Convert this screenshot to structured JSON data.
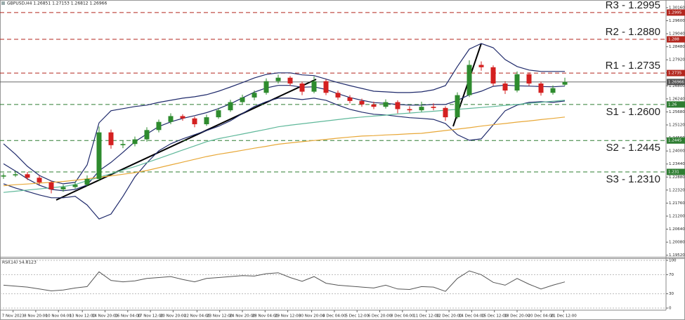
{
  "chart_data": [
    {
      "type": "candlestick",
      "title": "GBPUSD,H4  1.26851 1.27153 1.26812 1.26966",
      "bull_color": "#2e8b2e",
      "bear_color": "#d42020",
      "open": [
        1.229,
        1.2295,
        1.23,
        1.2285,
        1.2265,
        1.2235,
        1.2245,
        1.2255,
        1.228,
        1.248,
        1.2425,
        1.243,
        1.245,
        1.249,
        1.2525,
        1.255,
        1.254,
        1.2515,
        1.2545,
        1.2575,
        1.261,
        1.263,
        1.265,
        1.27,
        1.2715,
        1.269,
        1.2655,
        1.27,
        1.265,
        1.263,
        1.2615,
        1.26,
        1.259,
        1.261,
        1.258,
        1.2575,
        1.259,
        1.2585,
        1.2545,
        1.264,
        1.277,
        1.276,
        1.269,
        1.266,
        1.273,
        1.269,
        1.265,
        1.2685
      ],
      "high": [
        1.2305,
        1.2312,
        1.231,
        1.2295,
        1.2272,
        1.2255,
        1.2268,
        1.2295,
        1.2505,
        1.2492,
        1.2445,
        1.2462,
        1.2502,
        1.2535,
        1.2562,
        1.2558,
        1.2548,
        1.2556,
        1.2585,
        1.262,
        1.2642,
        1.266,
        1.2712,
        1.2728,
        1.2722,
        1.2698,
        1.2721,
        1.2708,
        1.266,
        1.264,
        1.2625,
        1.2612,
        1.2622,
        1.2618,
        1.2592,
        1.2612,
        1.2605,
        1.2592,
        1.2652,
        1.279,
        1.2785,
        1.2768,
        1.27,
        1.2742,
        1.2738,
        1.2698,
        1.2682,
        1.2715
      ],
      "low": [
        1.228,
        1.2288,
        1.2275,
        1.2255,
        1.2218,
        1.2225,
        1.2238,
        1.2248,
        1.227,
        1.241,
        1.2412,
        1.242,
        1.244,
        1.248,
        1.2515,
        1.253,
        1.2502,
        1.2508,
        1.2538,
        1.2568,
        1.26,
        1.2618,
        1.2642,
        1.269,
        1.268,
        1.264,
        1.2648,
        1.264,
        1.262,
        1.2605,
        1.259,
        1.258,
        1.2582,
        1.2562,
        1.2565,
        1.2568,
        1.2575,
        1.253,
        1.2538,
        1.2632,
        1.2745,
        1.268,
        1.2645,
        1.2652,
        1.268,
        1.2638,
        1.2642,
        1.2681
      ],
      "close": [
        1.2295,
        1.23,
        1.2285,
        1.2265,
        1.2235,
        1.2245,
        1.2255,
        1.228,
        1.248,
        1.2425,
        1.243,
        1.245,
        1.249,
        1.2525,
        1.255,
        1.254,
        1.2515,
        1.2545,
        1.2575,
        1.261,
        1.263,
        1.265,
        1.27,
        1.2715,
        1.269,
        1.2655,
        1.27,
        1.265,
        1.263,
        1.2615,
        1.26,
        1.259,
        1.261,
        1.258,
        1.2575,
        1.259,
        1.2585,
        1.2545,
        1.264,
        1.277,
        1.276,
        1.269,
        1.266,
        1.273,
        1.269,
        1.265,
        1.267,
        1.2697
      ],
      "series": [
        {
          "color": "#1f2a6b",
          "values": [
            1.2431,
            1.2386,
            1.2334,
            1.2295,
            1.2271,
            1.2259,
            1.2265,
            1.234,
            1.2521,
            1.2573,
            1.2582,
            1.2591,
            1.2597,
            1.2609,
            1.2618,
            1.2627,
            1.2633,
            1.2642,
            1.2657,
            1.2675,
            1.2694,
            1.2714,
            1.2729,
            1.2736,
            1.2736,
            1.2727,
            1.2724,
            1.2709,
            1.2694,
            1.2681,
            1.2669,
            1.2657,
            1.2654,
            1.2651,
            1.2651,
            1.2654,
            1.2663,
            1.2681,
            1.2763,
            1.2838,
            1.2862,
            1.2844,
            1.2793,
            1.2763,
            1.2748,
            1.2742,
            1.2742,
            1.2742
          ]
        },
        {
          "color": "#1f2a6b",
          "values": [
            1.2345,
            1.2314,
            1.228,
            1.2253,
            1.2235,
            1.2229,
            1.2235,
            1.2254,
            1.2315,
            1.2351,
            1.2394,
            1.244,
            1.2473,
            1.2505,
            1.2525,
            1.254,
            1.2552,
            1.2565,
            1.2582,
            1.2603,
            1.2628,
            1.2653,
            1.2671,
            1.2682,
            1.2682,
            1.2674,
            1.2676,
            1.2664,
            1.2646,
            1.263,
            1.2618,
            1.2608,
            1.2605,
            1.26,
            1.2597,
            1.2597,
            1.26,
            1.26,
            1.2617,
            1.2642,
            1.2657,
            1.2678,
            1.2683,
            1.268,
            1.2679,
            1.2677,
            1.2676,
            1.2679
          ]
        },
        {
          "color": "#1f2a6b",
          "values": [
            1.2259,
            1.2241,
            1.2226,
            1.2211,
            1.2199,
            1.2199,
            1.2205,
            1.2168,
            1.2108,
            1.2129,
            1.2205,
            1.2289,
            1.2349,
            1.2401,
            1.2431,
            1.2452,
            1.247,
            1.2488,
            1.2506,
            1.253,
            1.2561,
            1.2591,
            1.2612,
            1.2627,
            1.2627,
            1.2621,
            1.2627,
            1.2618,
            1.2597,
            1.2579,
            1.2567,
            1.2558,
            1.2555,
            1.2549,
            1.2543,
            1.254,
            1.2536,
            1.2518,
            1.247,
            1.2446,
            1.2452,
            1.2512,
            1.2573,
            1.2597,
            1.2609,
            1.2612,
            1.2609,
            1.2615
          ]
        },
        {
          "color": "#5fb89a",
          "values": [
            1.2222,
            1.2227,
            1.2232,
            1.2237,
            1.2242,
            1.2247,
            1.2256,
            1.2272,
            1.2287,
            1.2302,
            1.2318,
            1.2333,
            1.235,
            1.2368,
            1.2386,
            1.2404,
            1.2422,
            1.244,
            1.2453,
            1.2463,
            1.2473,
            1.2483,
            1.2493,
            1.2504,
            1.2511,
            1.2517,
            1.2523,
            1.2529,
            1.2535,
            1.2541,
            1.2546,
            1.255,
            1.2554,
            1.2559,
            1.2563,
            1.2567,
            1.2571,
            1.2575,
            1.2579,
            1.2583,
            1.2587,
            1.2591,
            1.2596,
            1.26,
            1.2605,
            1.2609,
            1.2614,
            1.2618
          ]
        },
        {
          "color": "#e8a838",
          "values": [
            1.2251,
            1.2255,
            1.2258,
            1.2262,
            1.2265,
            1.2269,
            1.2274,
            1.228,
            1.2287,
            1.2293,
            1.23,
            1.2307,
            1.2316,
            1.2328,
            1.234,
            1.2352,
            1.2364,
            1.2376,
            1.2386,
            1.2394,
            1.2403,
            1.2412,
            1.242,
            1.2429,
            1.2435,
            1.244,
            1.2445,
            1.245,
            1.2455,
            1.246,
            1.2464,
            1.2466,
            1.2469,
            1.2471,
            1.2474,
            1.2476,
            1.2482,
            1.2488,
            1.2494,
            1.25,
            1.2507,
            1.2513,
            1.2518,
            1.2524,
            1.2529,
            1.2535,
            1.254,
            1.2546
          ]
        }
      ],
      "levels": [
        {
          "label": "R3 - 1.2995",
          "value": 1.2995,
          "color": "#b3261e"
        },
        {
          "label": "R2 - 1.2880",
          "value": 1.288,
          "color": "#b3261e"
        },
        {
          "label": "R1 - 1.2735",
          "value": 1.2735,
          "color": "#b3261e"
        },
        {
          "label": "S1 - 1.2600",
          "value": 1.26,
          "color": "#2e7d32"
        },
        {
          "label": "S2 - 1.2445",
          "value": 1.2445,
          "color": "#2e7d32"
        },
        {
          "label": "S3 - 1.2310",
          "value": 1.231,
          "color": "#2e7d32"
        }
      ],
      "last": {
        "value": 1.26966,
        "color": "#555555"
      },
      "xlim": [
        -0.294,
        55.47
      ],
      "ylim": [
        1.1948,
        1.3049
      ],
      "yticks": [
        {
          "value": 1.3016,
          "label": "1.30160"
        },
        {
          "value": 1.296,
          "label": "1.29600"
        },
        {
          "value": 1.2904,
          "label": "1.29040"
        },
        {
          "value": 1.2848,
          "label": "1.28480"
        },
        {
          "value": 1.2792,
          "label": "1.27920"
        },
        {
          "value": 1.2736,
          "label": "1.27360"
        },
        {
          "value": 1.268,
          "label": "1.26800"
        },
        {
          "value": 1.2624,
          "label": "1.26240"
        },
        {
          "value": 1.2568,
          "label": "1.25680"
        },
        {
          "value": 1.2512,
          "label": "1.25120"
        },
        {
          "value": 1.2456,
          "label": "1.24560"
        },
        {
          "value": 1.24,
          "label": "1.24000"
        },
        {
          "value": 1.2344,
          "label": "1.23440"
        },
        {
          "value": 1.2288,
          "label": "1.22880"
        },
        {
          "value": 1.2232,
          "label": "1.22320"
        },
        {
          "value": 1.2176,
          "label": "1.21760"
        },
        {
          "value": 1.212,
          "label": "1.21200"
        },
        {
          "value": 1.2064,
          "label": "1.20640"
        },
        {
          "value": 1.2008,
          "label": "1.20080"
        },
        {
          "value": 1.1952,
          "label": "1.19520"
        }
      ],
      "xticks": [
        {
          "value": 0.8,
          "label": "7 Nov 2023"
        },
        {
          "value": 2.7,
          "label": "8 Nov 20:00"
        },
        {
          "value": 4.6,
          "label": "10 Nov 04:00"
        },
        {
          "value": 6.6,
          "label": "13 Nov 12:00"
        },
        {
          "value": 8.5,
          "label": "14 Nov 20:00"
        },
        {
          "value": 10.4,
          "label": "16 Nov 04:00"
        },
        {
          "value": 12.3,
          "label": "17 Nov 12:00"
        },
        {
          "value": 14.2,
          "label": "20 Nov 20:00"
        },
        {
          "value": 16.2,
          "label": "22 Nov 04:00"
        },
        {
          "value": 18.1,
          "label": "23 Nov 12:00"
        },
        {
          "value": 20.0,
          "label": "24 Nov 20:00"
        },
        {
          "value": 21.9,
          "label": "28 Nov 04:00"
        },
        {
          "value": 23.8,
          "label": "29 Nov 12:00"
        },
        {
          "value": 25.8,
          "label": "30 Nov 20:00"
        },
        {
          "value": 27.7,
          "label": "4 Dec 04:00"
        },
        {
          "value": 29.6,
          "label": "5 Dec 12:00"
        },
        {
          "value": 31.5,
          "label": "6 Dec 20:00"
        },
        {
          "value": 33.4,
          "label": "8 Dec 04:00"
        },
        {
          "value": 35.4,
          "label": "11 Dec 12:00"
        },
        {
          "value": 37.3,
          "label": "12 Dec 20:00"
        },
        {
          "value": 39.2,
          "label": "14 Dec 04:00"
        },
        {
          "value": 41.1,
          "label": "15 Dec 12:00"
        },
        {
          "value": 43.0,
          "label": "18 Dec 20:00"
        },
        {
          "value": 45.0,
          "label": "20 Dec 04:00"
        },
        {
          "value": 46.9,
          "label": "21 Dec 12:00"
        }
      ]
    },
    {
      "type": "line",
      "title": "RSI(14) 54.8123",
      "color": "#555555",
      "values": [
        48,
        46,
        44,
        40,
        36,
        38,
        42,
        45,
        76,
        58,
        55,
        57,
        62,
        64,
        66,
        60,
        55,
        62,
        64,
        66,
        68,
        67,
        72,
        74,
        64,
        56,
        66,
        52,
        48,
        46,
        44,
        42,
        48,
        40,
        39,
        45,
        44,
        35,
        62,
        78,
        70,
        54,
        48,
        62,
        50,
        40,
        48,
        54.8
      ],
      "xlim": [
        -0.294,
        55.47
      ],
      "ylim": [
        0,
        100
      ],
      "yticks": [
        0,
        30,
        70,
        100
      ]
    }
  ]
}
